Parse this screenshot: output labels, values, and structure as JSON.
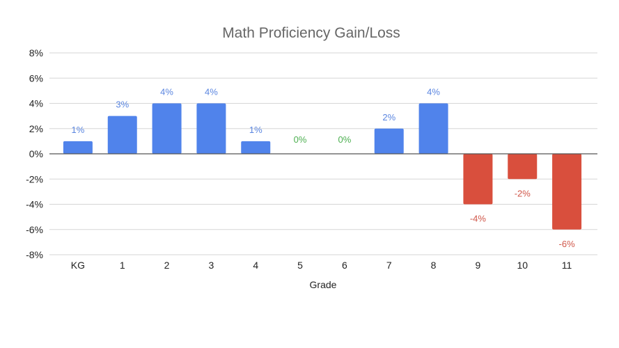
{
  "chart_data": {
    "type": "bar",
    "title": "Math Proficiency Gain/Loss",
    "xlabel": "Grade",
    "ylabel": "",
    "categories": [
      "KG",
      "1",
      "2",
      "3",
      "4",
      "5",
      "6",
      "7",
      "8",
      "9",
      "10",
      "11"
    ],
    "values": [
      1,
      3,
      4,
      4,
      1,
      0,
      0,
      2,
      4,
      -4,
      -2,
      -6
    ],
    "data_labels": [
      "1%",
      "3%",
      "4%",
      "4%",
      "1%",
      "0%",
      "0%",
      "2%",
      "4%",
      "-4%",
      "-2%",
      "-6%"
    ],
    "ylim": [
      -8,
      8
    ],
    "yticks": [
      8,
      6,
      4,
      2,
      0,
      -2,
      -4,
      -6,
      -8
    ],
    "ytick_labels": [
      "8%",
      "6%",
      "4%",
      "2%",
      "0%",
      "-2%",
      "-4%",
      "-6%",
      "-8%"
    ],
    "grid": true,
    "legend": "none",
    "colors": {
      "positive": "#5083eb",
      "negative": "#d94f3d",
      "zero_label": "#4caf50",
      "positive_label": "#5b86e0",
      "negative_label": "#d0574a"
    }
  }
}
